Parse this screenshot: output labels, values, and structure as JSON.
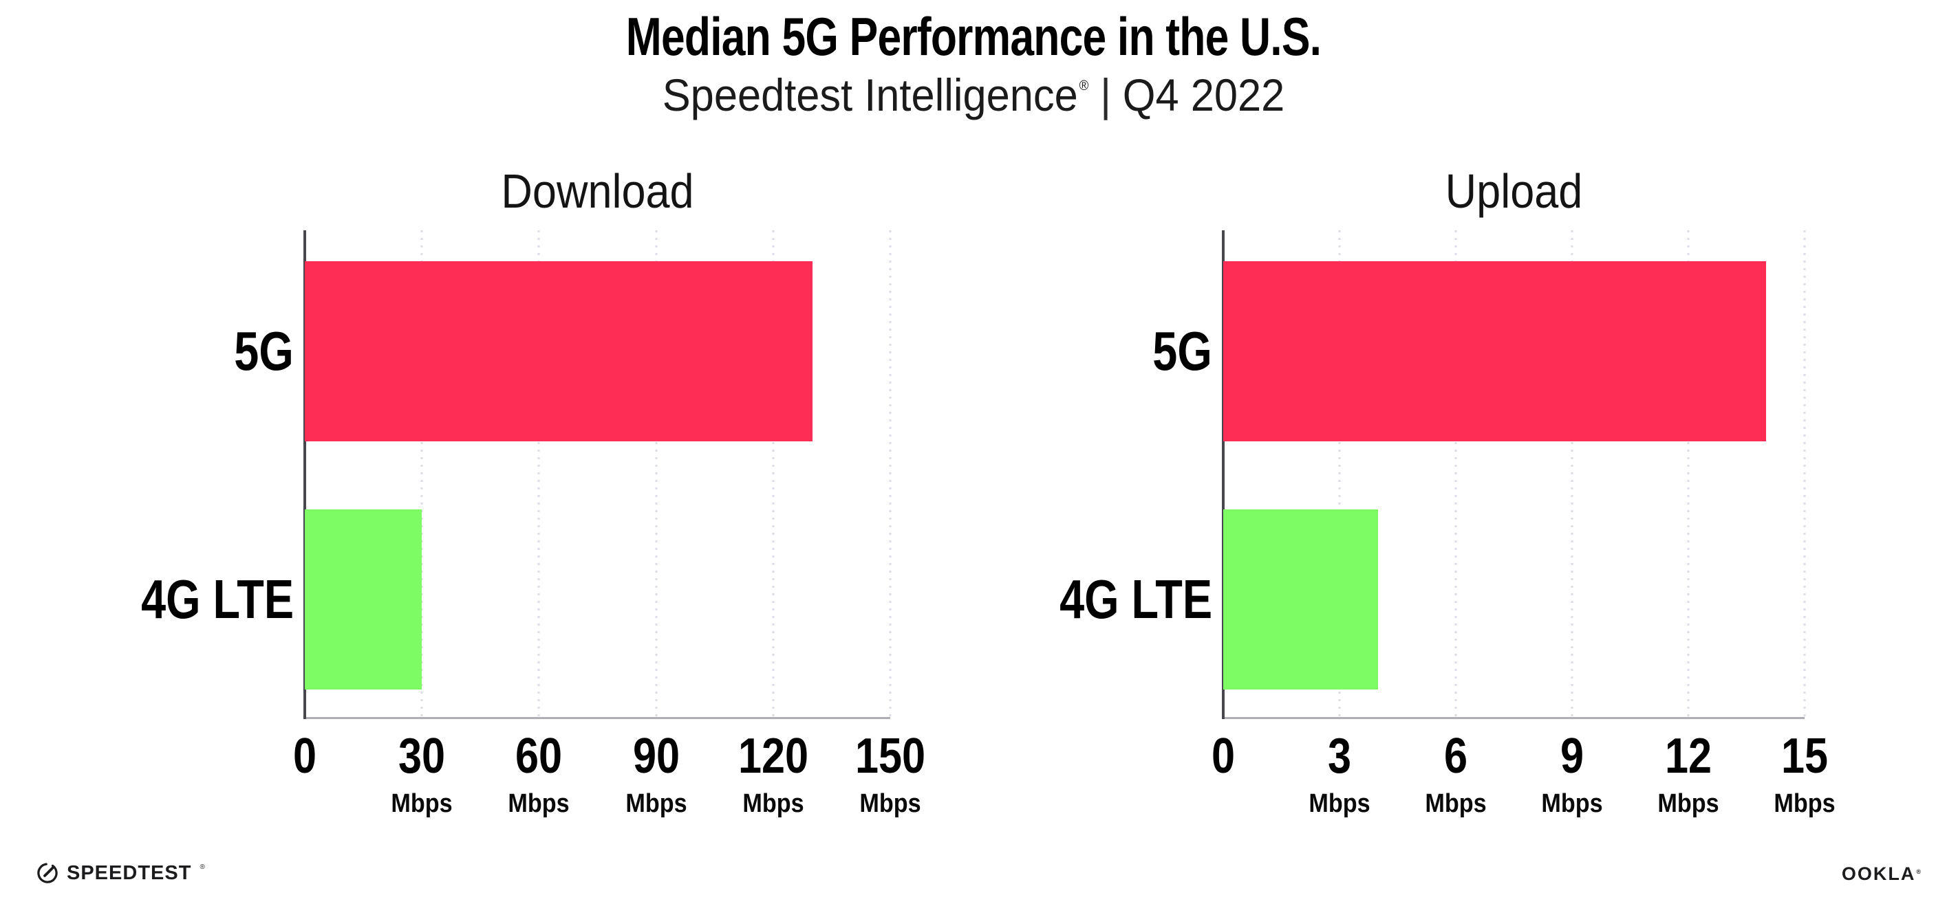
{
  "header": {
    "title": "Median 5G Performance in the U.S.",
    "subtitle": {
      "brand": "Speedtest Intelligence",
      "registered_mark": "®",
      "separator": "|",
      "period": "Q4 2022"
    }
  },
  "chart_data": [
    {
      "type": "bar",
      "orientation": "horizontal",
      "title": "Download",
      "categories": [
        "5G",
        "4G LTE"
      ],
      "values": [
        130,
        30
      ],
      "unit": "Mbps",
      "xlim": [
        0,
        150
      ],
      "xticks": [
        0,
        30,
        60,
        90,
        120,
        150
      ],
      "tick_unit_label": "Mbps",
      "bar_colors": [
        "#fd2d55",
        "#7dfc63"
      ],
      "grid": "dotted vertical gridline at each tick",
      "legend": "none"
    },
    {
      "type": "bar",
      "orientation": "horizontal",
      "title": "Upload",
      "categories": [
        "5G",
        "4G LTE"
      ],
      "values": [
        14,
        4
      ],
      "unit": "Mbps",
      "xlim": [
        0,
        15
      ],
      "xticks": [
        0,
        3,
        6,
        9,
        12,
        15
      ],
      "tick_unit_label": "Mbps",
      "bar_colors": [
        "#fd2d55",
        "#7dfc63"
      ],
      "grid": "dotted vertical gridline at each tick",
      "legend": "none"
    }
  ],
  "footer": {
    "speedtest_wordmark": "SPEEDTEST",
    "speedtest_trademark": "®",
    "ookla_wordmark": "OOKLA",
    "ookla_trademark": "®"
  },
  "colors": {
    "bar_5g": "#fd2d55",
    "bar_4g_lte": "#7dfc63",
    "axis_line": "#47474d",
    "baseline": "#aeaeb4",
    "gridline": "#dcdce6",
    "text": "#000000"
  }
}
